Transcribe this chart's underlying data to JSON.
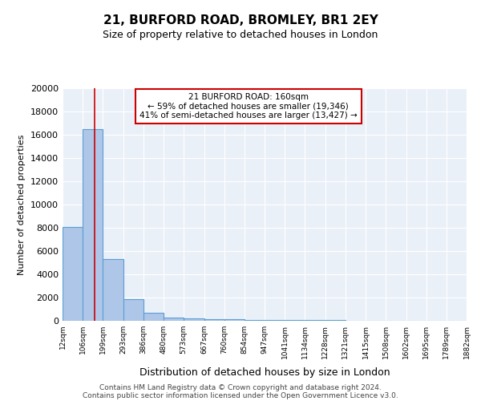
{
  "title1": "21, BURFORD ROAD, BROMLEY, BR1 2EY",
  "title2": "Size of property relative to detached houses in London",
  "xlabel": "Distribution of detached houses by size in London",
  "ylabel": "Number of detached properties",
  "bin_labels": [
    "12sqm",
    "106sqm",
    "199sqm",
    "293sqm",
    "386sqm",
    "480sqm",
    "573sqm",
    "667sqm",
    "760sqm",
    "854sqm",
    "947sqm",
    "1041sqm",
    "1134sqm",
    "1228sqm",
    "1321sqm",
    "1415sqm",
    "1508sqm",
    "1602sqm",
    "1695sqm",
    "1789sqm",
    "1882sqm"
  ],
  "bin_edges": [
    12,
    106,
    199,
    293,
    386,
    480,
    573,
    667,
    760,
    854,
    947,
    1041,
    1134,
    1228,
    1321,
    1415,
    1508,
    1602,
    1695,
    1789,
    1882
  ],
  "bar_heights": [
    8100,
    16500,
    5300,
    1850,
    700,
    300,
    200,
    150,
    130,
    100,
    80,
    60,
    50,
    40,
    30,
    25,
    20,
    18,
    15,
    12
  ],
  "bar_color": "#aec6e8",
  "bar_edge_color": "#5a9fd4",
  "background_color": "#eaf0f8",
  "property_size": 160,
  "property_line_color": "#cc0000",
  "annotation_text": "21 BURFORD ROAD: 160sqm\n← 59% of detached houses are smaller (19,346)\n41% of semi-detached houses are larger (13,427) →",
  "annotation_box_color": "#ffffff",
  "annotation_box_edge": "#cc0000",
  "ylim": [
    0,
    20000
  ],
  "yticks": [
    0,
    2000,
    4000,
    6000,
    8000,
    10000,
    12000,
    14000,
    16000,
    18000,
    20000
  ],
  "footer_line1": "Contains HM Land Registry data © Crown copyright and database right 2024.",
  "footer_line2": "Contains public sector information licensed under the Open Government Licence v3.0."
}
